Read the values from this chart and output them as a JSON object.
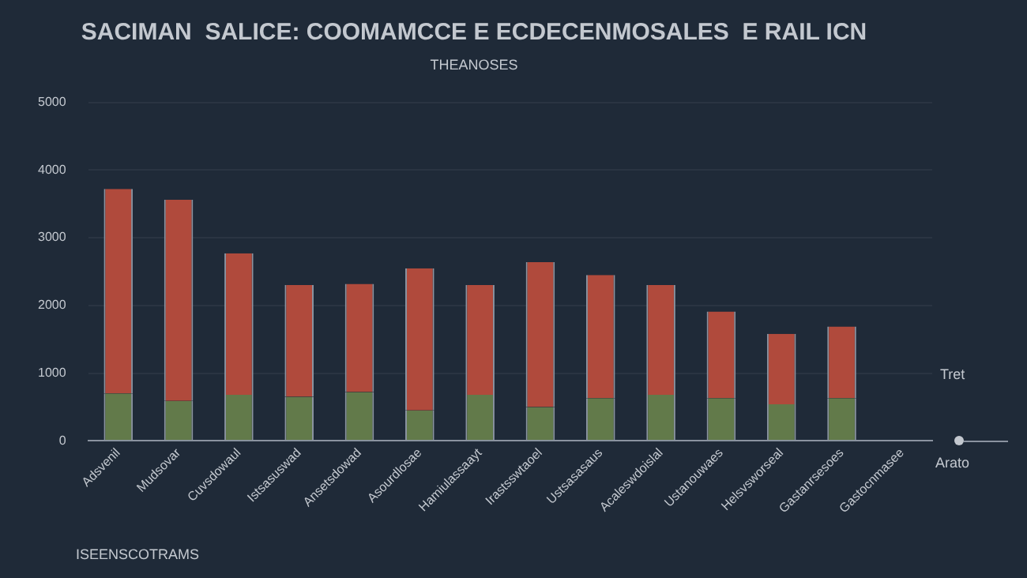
{
  "chart_data": {
    "type": "bar",
    "title": "SACIMAN  SALICE: COOMAMCCE E ECDECENMOSALES  E RAIL ICN",
    "subtitle": "THEANOSES",
    "categories": [
      "Adsvenil",
      "Mudsovar",
      "Cuvsdowaul",
      "Istsasuswad",
      "Ansetsdowad",
      "Asourdlosae",
      "Hamiulassaayt",
      "Irastsswtaoel",
      "Ustsasasaus",
      "Acaleswdoislal",
      "Ustanouwaes",
      "Helsvsworseal",
      "Gastanrsesoes",
      "Gastocnmasee"
    ],
    "series": [
      {
        "color": "#627a4a",
        "values": [
          700,
          590,
          680,
          650,
          720,
          450,
          680,
          500,
          630,
          680,
          630,
          540,
          630,
          null
        ]
      },
      {
        "color": "#b04a3c",
        "values": [
          3020,
          2970,
          2090,
          1650,
          1600,
          2100,
          1620,
          2140,
          1820,
          1620,
          1280,
          1040,
          1060,
          null
        ]
      }
    ],
    "stacked": true,
    "ylim": [
      0,
      5000
    ],
    "yticks": [
      0,
      1000,
      2000,
      3000,
      4000,
      5000
    ],
    "grid": "y",
    "legend": false,
    "annotations": [
      "Tret",
      "Arato",
      "ISEENSCOTRAMS"
    ]
  }
}
